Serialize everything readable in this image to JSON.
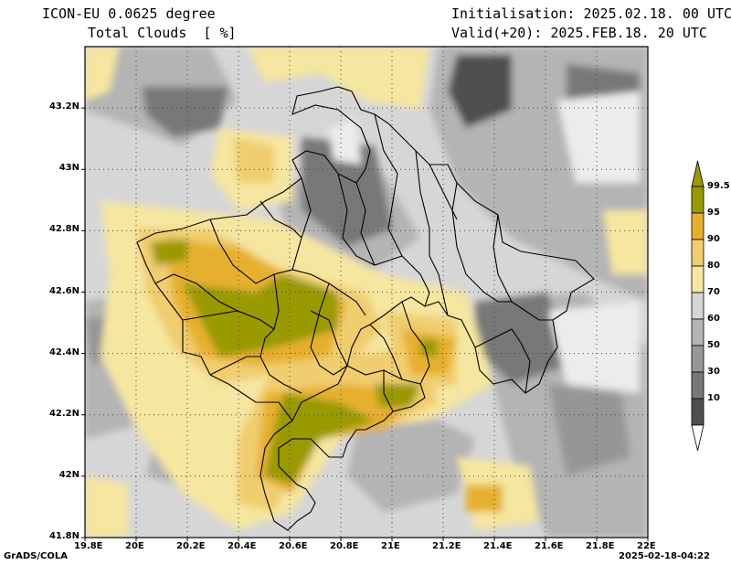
{
  "header": {
    "model": "ICON-EU 0.0625 degree",
    "variable": "Total Clouds  [ %]",
    "init": "Initialisation: 2025.02.18. 00 UTC",
    "valid": "Valid(+20): 2025.FEB.18. 20 UTC"
  },
  "axes": {
    "lat_labels": [
      "43.2N",
      "43N",
      "42.8N",
      "42.6N",
      "42.4N",
      "42.2N",
      "42N",
      "41.8N"
    ],
    "lat_values": [
      43.2,
      43.0,
      42.8,
      42.6,
      42.4,
      42.2,
      42.0,
      41.8
    ],
    "lon_labels": [
      "19.8E",
      "20E",
      "20.2E",
      "20.4E",
      "20.6E",
      "20.8E",
      "21E",
      "21.2E",
      "21.4E",
      "21.6E",
      "21.8E",
      "22E"
    ],
    "lon_values": [
      19.8,
      20.0,
      20.2,
      20.4,
      20.6,
      20.8,
      21.0,
      21.2,
      21.4,
      21.6,
      21.8,
      22.0
    ],
    "lat_range": [
      41.8,
      43.4
    ],
    "lon_range": [
      19.8,
      22.0
    ],
    "grid": "dotted"
  },
  "legend": {
    "labels": [
      "99.5",
      "95",
      "90",
      "80",
      "70",
      "60",
      "50",
      "30",
      "10"
    ],
    "colors": [
      "#999900",
      "#e6b02e",
      "#f0cd6e",
      "#f5e6a0",
      "#d6d6d6",
      "#b4b4b4",
      "#969696",
      "#787878",
      "#505050"
    ],
    "top_color": "#999900",
    "bottom_color": "#ffffff"
  },
  "footer": {
    "left": "GrADS/COLA",
    "right": "2025-02-18-04:22"
  }
}
